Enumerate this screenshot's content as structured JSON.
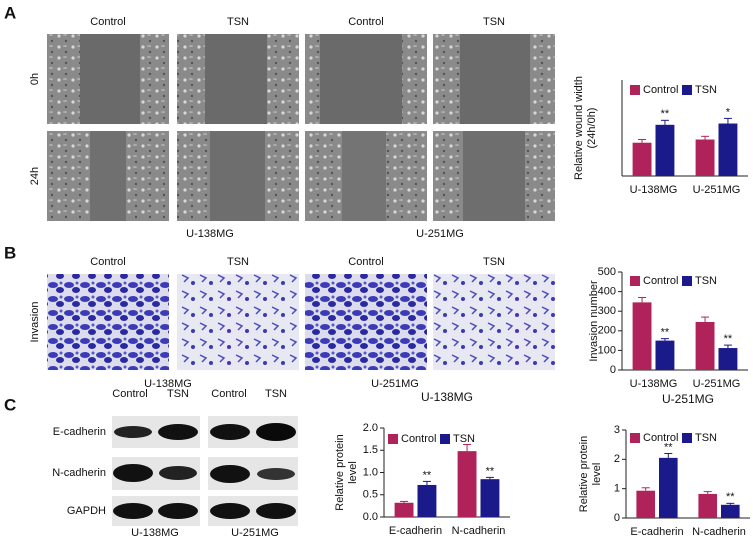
{
  "panel_labels": [
    "A",
    "B",
    "C"
  ],
  "panel_a": {
    "columns": [
      "Control",
      "TSN",
      "Control",
      "TSN"
    ],
    "rows": [
      "0h",
      "24h"
    ],
    "groups": [
      "U-138MG",
      "U-251MG"
    ]
  },
  "panel_b": {
    "columns": [
      "Control",
      "TSN",
      "Control",
      "TSN"
    ],
    "row": "Invasion",
    "groups": [
      "U-138MG",
      "U-251MG"
    ]
  },
  "panel_c_blot": {
    "columns": [
      "Control",
      "TSN",
      "Control",
      "TSN"
    ],
    "rows": [
      "E-cadherin",
      "N-cadherin",
      "GAPDH"
    ],
    "groups": [
      "U-138MG",
      "U-251MG"
    ]
  },
  "chart_data": [
    {
      "type": "bar",
      "ylabel": [
        "Relative wound width",
        "(24h/0h)"
      ],
      "categories": [
        "U-138MG",
        "U-251MG"
      ],
      "ylim": [
        0,
        1.5
      ],
      "series": [
        {
          "name": "Control",
          "color": "#b0235a",
          "values": [
            0.52,
            0.57
          ],
          "errors": [
            0.05,
            0.05
          ]
        },
        {
          "name": "TSN",
          "color": "#1b1a8a",
          "values": [
            0.8,
            0.82
          ],
          "errors": [
            0.07,
            0.08
          ],
          "significance": [
            "**",
            "*"
          ]
        }
      ]
    },
    {
      "type": "bar",
      "ylabel": [
        "Invasion number"
      ],
      "categories": [
        "U-138MG",
        "U-251MG"
      ],
      "ylim": [
        0,
        500
      ],
      "yticks": [
        0,
        100,
        200,
        300,
        400,
        500
      ],
      "series": [
        {
          "name": "Control",
          "color": "#b0235a",
          "values": [
            345,
            245
          ],
          "errors": [
            25,
            25
          ]
        },
        {
          "name": "TSN",
          "color": "#1b1a8a",
          "values": [
            150,
            112
          ],
          "errors": [
            10,
            15
          ],
          "significance": [
            "**",
            "**"
          ]
        }
      ]
    },
    {
      "type": "bar",
      "title": "U-138MG",
      "ylabel": [
        "Relative protein",
        "level"
      ],
      "categories": [
        "E-cadherin",
        "N-cadherin"
      ],
      "ylim": [
        0,
        2
      ],
      "yticks": [
        {
          "value": 0,
          "label": "0.0"
        },
        0.5,
        {
          "value": 1,
          "label": "1.0"
        },
        1.5,
        {
          "value": 2,
          "label": "2.0"
        }
      ],
      "series": [
        {
          "name": "Control",
          "color": "#b0235a",
          "values": [
            0.32,
            1.48
          ],
          "errors": [
            0.03,
            0.15
          ]
        },
        {
          "name": "TSN",
          "color": "#1b1a8a",
          "values": [
            0.72,
            0.85
          ],
          "errors": [
            0.08,
            0.04
          ],
          "significance": [
            "**",
            "**"
          ]
        }
      ]
    },
    {
      "type": "bar",
      "title": "U-251MG",
      "ylabel": [
        "Relative protein",
        "level"
      ],
      "categories": [
        "E-cadherin",
        "N-cadherin"
      ],
      "ylim": [
        0,
        3
      ],
      "yticks": [
        0,
        1,
        2,
        3
      ],
      "series": [
        {
          "name": "Control",
          "color": "#b0235a",
          "values": [
            0.93,
            0.82
          ],
          "errors": [
            0.1,
            0.08
          ]
        },
        {
          "name": "TSN",
          "color": "#1b1a8a",
          "values": [
            2.05,
            0.45
          ],
          "errors": [
            0.15,
            0.05
          ],
          "significance": [
            "**",
            "**"
          ]
        }
      ]
    }
  ]
}
